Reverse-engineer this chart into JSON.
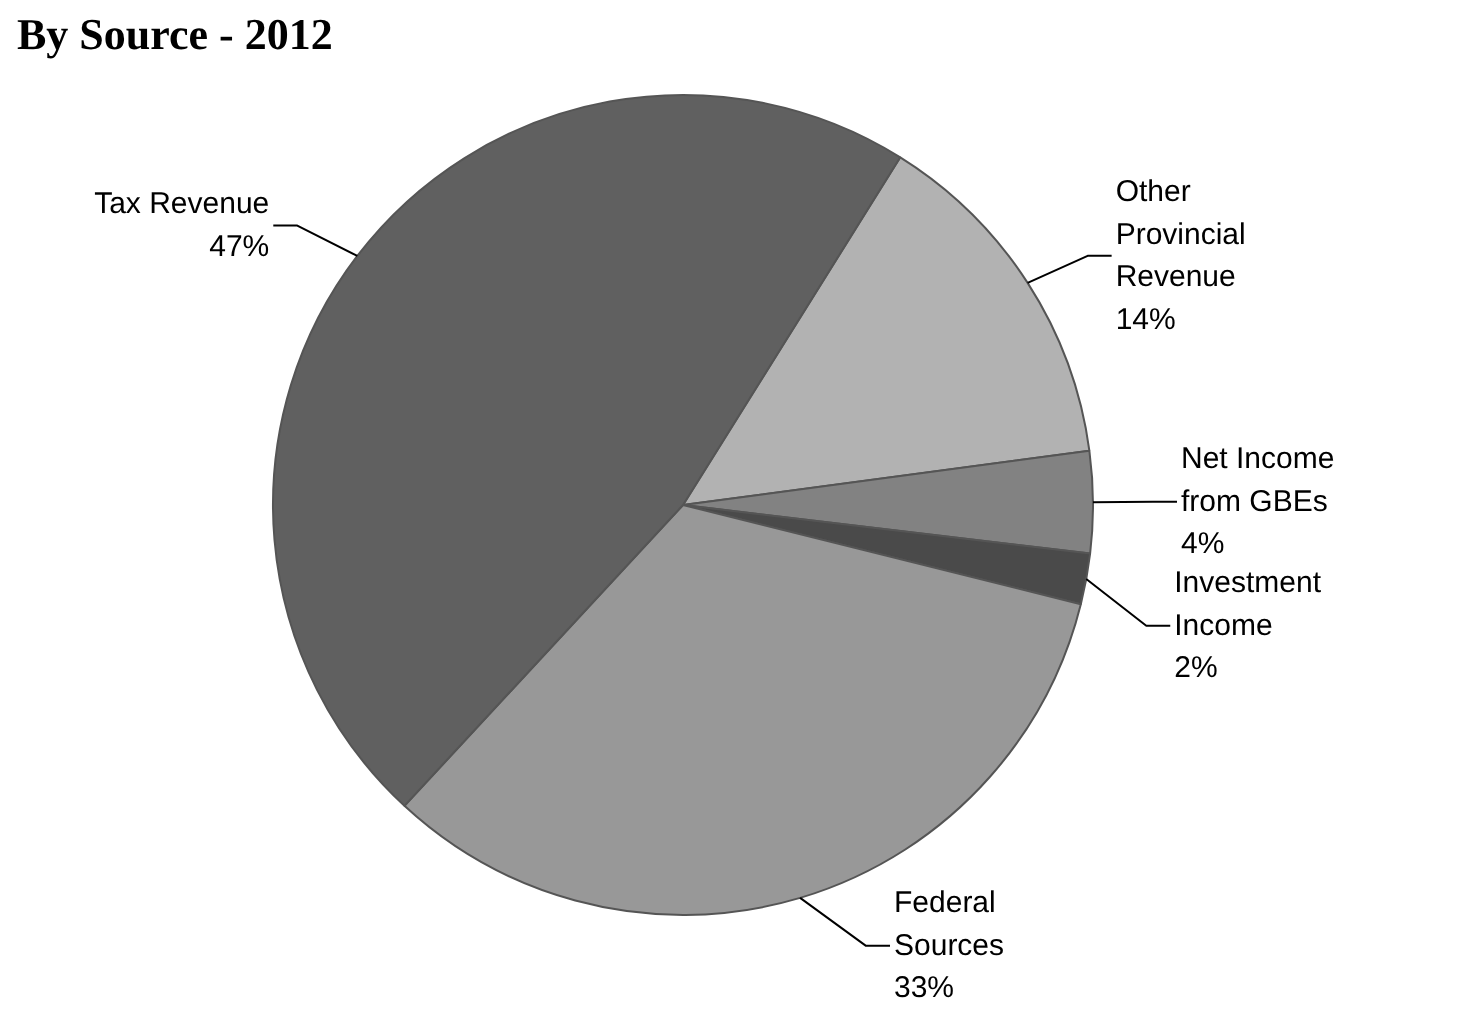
{
  "chart_data": {
    "type": "pie",
    "title": "By Source - 2012",
    "categories": [
      "Other\nProvincial\nRevenue",
      "Net Income\nfrom GBEs",
      "Investment\nIncome",
      "Federal\nSources",
      "Tax Revenue"
    ],
    "values": [
      14,
      4,
      2,
      33,
      47
    ],
    "colors": [
      "#b2b2b2",
      "#828282",
      "#4a4a4a",
      "#989898",
      "#606060"
    ],
    "value_labels": [
      "14%",
      "4%",
      "2%",
      "33%",
      "47%"
    ]
  }
}
